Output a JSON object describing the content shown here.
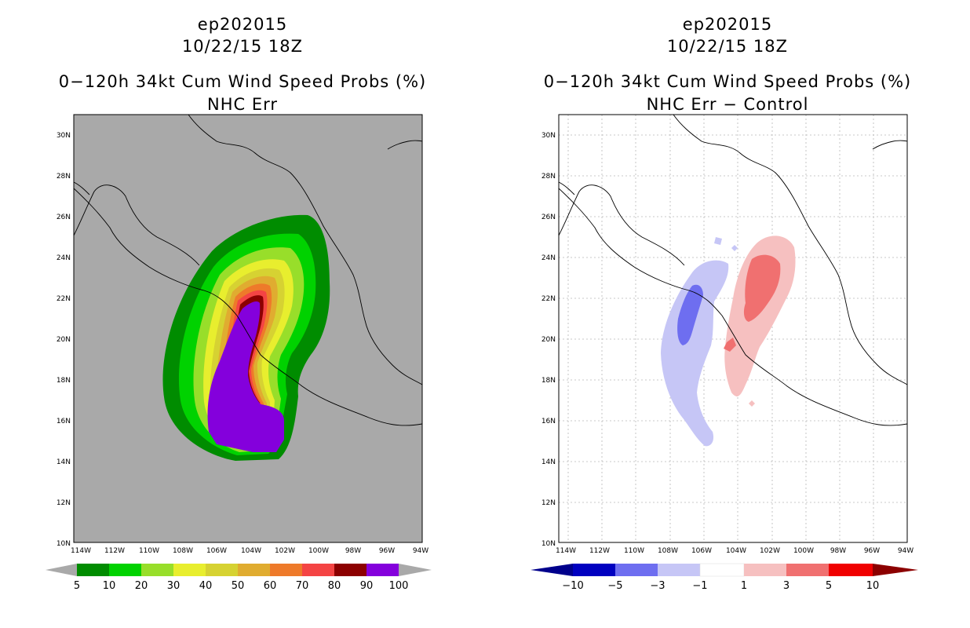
{
  "left_panel": {
    "storm_id": "ep202015",
    "datetime": "10/22/15 18Z",
    "product": "0−120h 34kt Cum Wind Speed Probs (%)",
    "subtitle": "NHC Err",
    "colors": {
      "background": "#a9a9a9"
    },
    "colorbar": {
      "labels": [
        "5",
        "10",
        "20",
        "30",
        "40",
        "50",
        "60",
        "70",
        "80",
        "90",
        "100"
      ],
      "colors": [
        "#008c00",
        "#00d200",
        "#98de2a",
        "#e8ee2e",
        "#d6d232",
        "#e0ac30",
        "#ee7a2a",
        "#f44444",
        "#8c0000",
        "#8400dc"
      ],
      "under_color": "#a9a9a9",
      "over_color": "#a9a9a9"
    }
  },
  "right_panel": {
    "storm_id": "ep202015",
    "datetime": "10/22/15 18Z",
    "product": "0−120h 34kt Cum Wind Speed Probs (%)",
    "subtitle": "NHC Err − Control",
    "colorbar": {
      "labels": [
        "−10",
        "−5",
        "−3",
        "−1",
        "1",
        "3",
        "5",
        "10"
      ],
      "colors": [
        "#0000c0",
        "#6e6ef0",
        "#c6c6f6",
        "#ffffff",
        "#f6c0c0",
        "#f07070",
        "#f00000"
      ],
      "under_color": "#00008c",
      "over_color": "#8c0000"
    }
  },
  "map_axes": {
    "lon_labels": [
      "114W",
      "112W",
      "110W",
      "108W",
      "106W",
      "104W",
      "102W",
      "100W",
      "98W",
      "96W",
      "94W"
    ],
    "lat_labels": [
      "30N",
      "28N",
      "26N",
      "24N",
      "22N",
      "20N",
      "18N",
      "16N",
      "14N",
      "12N",
      "10N"
    ],
    "lon_range": [
      -114.5,
      -94
    ],
    "lat_range": [
      10,
      31
    ]
  }
}
